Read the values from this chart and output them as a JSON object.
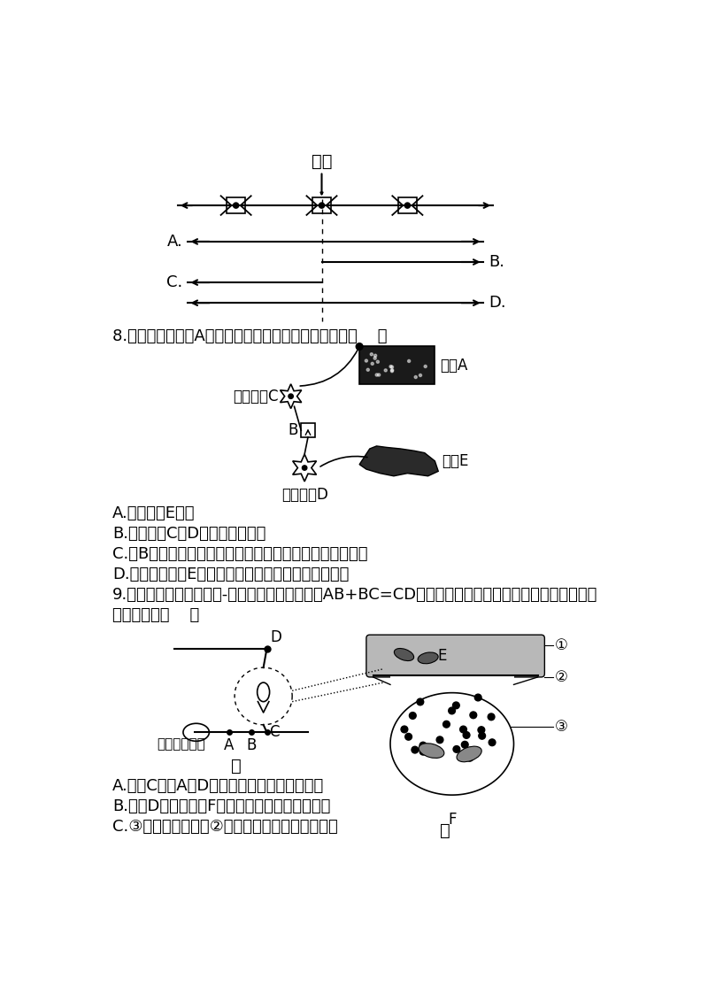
{
  "bg_color": "#ffffff",
  "body_font_size": 13,
  "label_font_size": 12,
  "small_font_size": 11,
  "q7_stim_label": "刺激",
  "q8_text": "8.如图所示，如果A接受刺激，下列有关叙述正确的是（    ）",
  "q8_options": [
    "A.不会引起E收缩",
    "B.神经细胞C与D的兴奋是同步的",
    "C.在B处，兴奋由电信号转变为化学信号，再转变为电信号",
    "D.一般情况下，E中细胞将消耗蛋白质分解释放的能量"
  ],
  "q9_line1": "9.图甲是青蛙离体的神经-肌肉标本示意图，图中AB+BC=CD，乙是突触放大模式图。据图分析，下列说",
  "q9_line2": "法正确的是（    ）",
  "q9_options": [
    "A.刺激C处，A、D处可同时检测到膜电位变化",
    "B.刺激D处，肌肉和F内的线粒体活动均明显增强",
    "C.③的内容物释放到②中主要借助生物膜的流动性"
  ],
  "skin_label": "皮肤A",
  "neuro_c_label": "神经细胞C",
  "neuro_d_label": "神经细胞D",
  "muscle_e_label": "肌肉E",
  "b_label": "B",
  "muscle_fiber_label": "肌肉神经纤维",
  "jia_label": "甲",
  "yi_label": "乙",
  "e_label": "E",
  "f_label": "F",
  "d_label": "D",
  "c_label": "C",
  "a_label": "A",
  "b2_label": "B"
}
